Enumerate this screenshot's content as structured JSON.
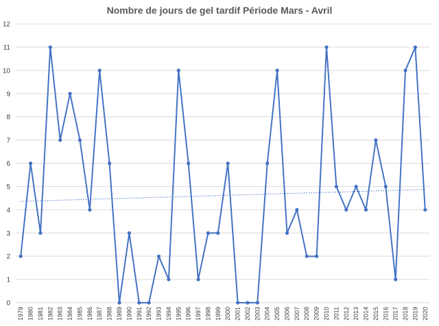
{
  "chart_data": {
    "type": "line",
    "title": "Nombre de jours de gel tardif Période Mars - Avril",
    "xlabel": "",
    "ylabel": "",
    "ylim": [
      0,
      12
    ],
    "yticks": [
      0,
      1,
      2,
      3,
      4,
      5,
      6,
      7,
      8,
      9,
      10,
      11,
      12
    ],
    "grid": true,
    "legend": "none",
    "categories": [
      "1979",
      "1980",
      "1981",
      "1982",
      "1983",
      "1984",
      "1985",
      "1986",
      "1987",
      "1988",
      "1989",
      "1990",
      "1991",
      "1992",
      "1993",
      "1994",
      "1995",
      "1996",
      "1997",
      "1998",
      "1999",
      "2000",
      "2001",
      "2002",
      "2003",
      "2004",
      "2005",
      "2006",
      "2007",
      "2008",
      "2009",
      "2010",
      "2011",
      "2012",
      "2013",
      "2014",
      "2015",
      "2016",
      "2017",
      "2018",
      "2019",
      "2020"
    ],
    "series": [
      {
        "values": [
          2,
          6,
          3,
          11,
          7,
          9,
          7,
          4,
          10,
          6,
          0,
          3,
          0,
          0,
          2,
          1,
          10,
          6,
          1,
          3,
          3,
          6,
          0,
          0,
          0,
          6,
          10,
          3,
          4,
          2,
          2,
          11,
          5,
          4,
          5,
          4,
          7,
          5,
          1,
          10,
          11,
          4
        ],
        "color": "#4472c4",
        "trendline": "linear"
      }
    ]
  }
}
